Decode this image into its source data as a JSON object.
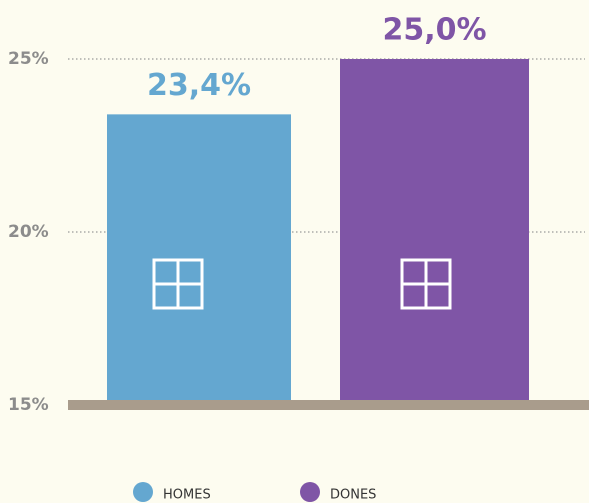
{
  "chart_data": {
    "type": "bar",
    "categories": [
      null,
      null
    ],
    "series": [
      {
        "name": "HOMES",
        "color": "#64a7d0",
        "values": [
          23.4,
          null
        ],
        "value_labels": [
          "23,4%",
          null
        ]
      },
      {
        "name": "DONES",
        "color": "#7f55a6",
        "values": [
          null,
          25.0
        ],
        "value_labels": [
          null,
          "25,0%"
        ]
      }
    ],
    "ylim": [
      15,
      25
    ],
    "yticks": [
      {
        "value": 15,
        "label": "15%"
      },
      {
        "value": 20,
        "label": "20%"
      },
      {
        "value": 25,
        "label": "25%"
      }
    ],
    "grid": true
  }
}
